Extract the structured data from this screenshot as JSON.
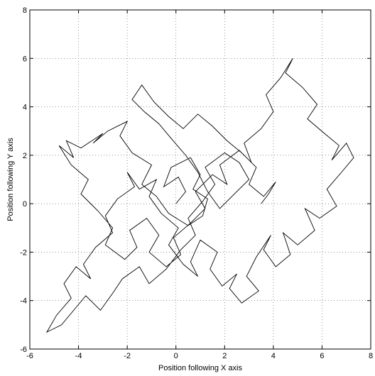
{
  "chart_data": {
    "type": "line",
    "xlabel": "Position following X axis",
    "ylabel": "Position following Y axis",
    "xlim": [
      -6,
      8
    ],
    "ylim": [
      -6,
      8
    ],
    "xticks": [
      -6,
      -4,
      -2,
      0,
      2,
      4,
      6,
      8
    ],
    "yticks": [
      -6,
      -4,
      -2,
      0,
      2,
      4,
      6,
      8
    ],
    "grid": true,
    "series": [
      {
        "color": "#000000",
        "x": [
          0,
          0.4,
          0.1,
          -0.5,
          -0.2,
          0.6,
          1.0,
          0.7,
          1.3,
          1.1,
          0.5,
          -0.3,
          -0.8,
          -1.4,
          -1.0,
          -1.8,
          -2.3,
          -2.0,
          -2.8,
          -3.4,
          -3.0,
          -3.9,
          -4.5,
          -4.2,
          -4.8,
          -4.3,
          -3.6,
          -3.9,
          -3.2,
          -2.6,
          -2.9,
          -2.1,
          -1.6,
          -1.9,
          -1.2,
          -0.7,
          -1.1,
          -0.4,
          0.2,
          -0.1,
          0.6,
          1.2,
          0.8,
          1.5,
          2.1,
          1.8,
          2.6,
          3.1,
          2.8,
          3.5,
          4.0,
          3.7,
          4.3,
          4.8,
          4.5,
          5.2,
          5.8,
          5.4,
          6.1,
          6.7,
          6.4,
          7.0,
          7.3,
          6.8,
          6.2,
          6.6,
          5.9,
          5.3,
          5.7,
          5.0,
          4.4,
          4.7,
          4.1,
          3.6,
          3.9,
          3.3,
          2.9,
          3.4,
          2.7,
          2.2,
          2.5,
          1.9,
          1.4,
          1.7,
          1.0,
          0.6,
          0.9,
          0.3,
          -0.3,
          0.1,
          -0.6,
          -1.1,
          -0.8,
          -1.5,
          -2.0,
          -1.7,
          -2.4,
          -2.9,
          -2.6,
          -3.3,
          -3.8,
          -3.5,
          -4.1,
          -4.6,
          -4.3,
          -4.9,
          -5.3,
          -4.7,
          -4.2,
          -3.7,
          -3.1,
          -2.6,
          -2.2,
          -1.5,
          -1.1,
          -0.4,
          0.2,
          0.8,
          0.5,
          1.1,
          1.6,
          1.2,
          2.0,
          2.6,
          3.0,
          2.4,
          1.8,
          1.3,
          0.9,
          0.4,
          -0.2,
          -0.7,
          -1.3,
          -1.8,
          -1.4,
          -0.9,
          -0.3,
          0.3,
          0.9,
          1.5,
          2.1,
          2.7,
          3.3,
          3.0,
          3.6,
          4.1,
          3.8,
          3.5
        ],
        "values": [
          0,
          0.5,
          1.1,
          0.7,
          1.5,
          1.9,
          1.2,
          0.6,
          0.2,
          -0.5,
          -0.9,
          -0.4,
          0.3,
          0.8,
          1.6,
          2.1,
          2.8,
          3.4,
          3.0,
          2.5,
          2.9,
          2.3,
          2.6,
          1.9,
          2.4,
          1.6,
          1.0,
          0.4,
          -0.3,
          -1.0,
          -1.7,
          -2.3,
          -1.8,
          -1.1,
          -0.6,
          -1.3,
          -2.0,
          -2.6,
          -2.1,
          -1.4,
          -0.8,
          -0.2,
          0.5,
          1.2,
          0.8,
          1.6,
          2.2,
          1.7,
          2.5,
          3.1,
          3.8,
          4.5,
          5.2,
          6.0,
          5.4,
          4.8,
          4.1,
          3.5,
          2.9,
          2.4,
          1.8,
          2.5,
          1.9,
          1.3,
          0.6,
          -0.1,
          -0.6,
          -0.2,
          -1.1,
          -1.7,
          -1.2,
          -2.1,
          -2.6,
          -1.9,
          -1.3,
          -2.2,
          -3.0,
          -3.6,
          -4.1,
          -3.5,
          -2.9,
          -3.4,
          -2.7,
          -2.0,
          -1.5,
          -2.4,
          -3.0,
          -2.5,
          -1.7,
          -1.0,
          -0.4,
          0.3,
          1.0,
          0.6,
          1.3,
          0.7,
          0.2,
          -0.5,
          -1.2,
          -1.8,
          -2.5,
          -3.1,
          -2.6,
          -3.3,
          -3.9,
          -4.6,
          -5.3,
          -5.0,
          -4.4,
          -3.8,
          -4.4,
          -3.7,
          -3.1,
          -2.6,
          -3.3,
          -2.7,
          -1.9,
          -1.3,
          -0.6,
          0.1,
          0.8,
          1.5,
          2.1,
          1.7,
          1.0,
          0.4,
          -0.2,
          0.5,
          1.3,
          2.0,
          2.7,
          3.3,
          3.8,
          4.3,
          4.9,
          4.2,
          3.6,
          3.1,
          3.7,
          3.2,
          2.6,
          2.1,
          1.5,
          0.8,
          0.3,
          0.9,
          0.4,
          0.0
        ]
      }
    ]
  }
}
